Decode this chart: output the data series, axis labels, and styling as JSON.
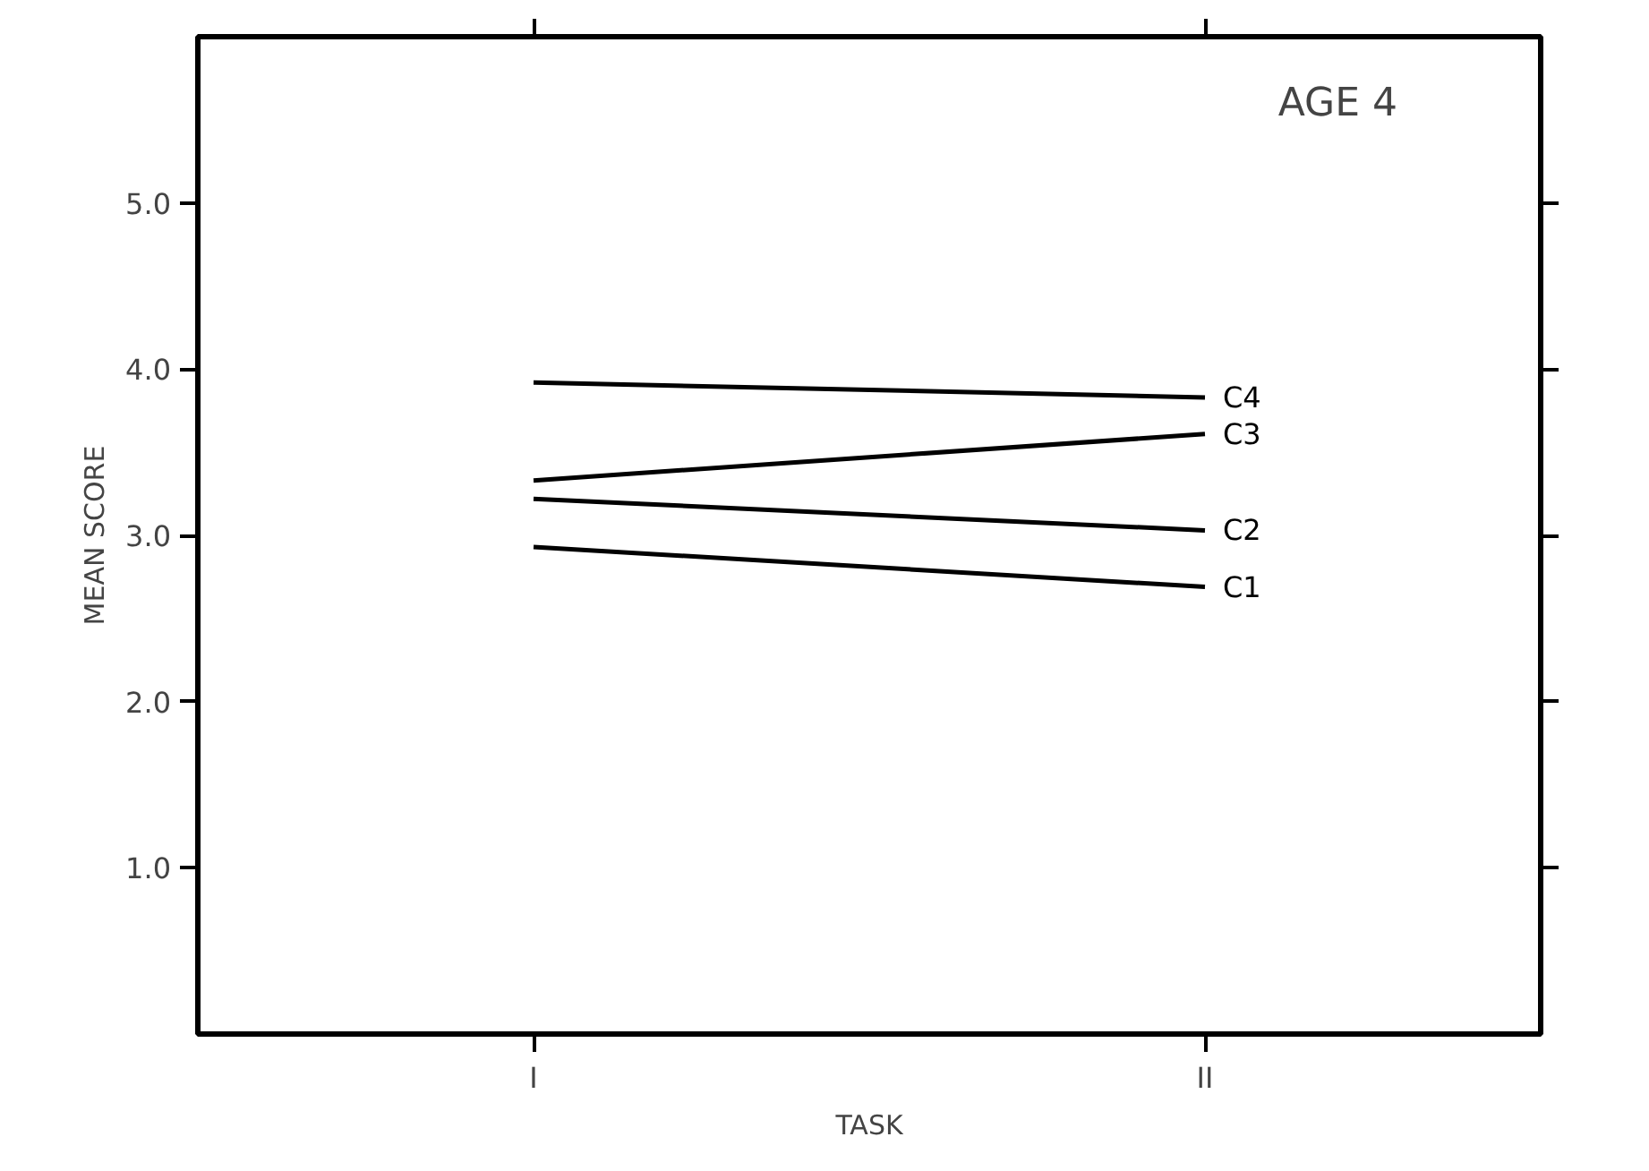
{
  "chart_data": {
    "type": "line",
    "xlabel": "TASK",
    "ylabel": "MEAN SCORE",
    "categories": [
      "I",
      "II"
    ],
    "series": [
      {
        "name": "C4",
        "color": "#000000",
        "values": [
          3.92,
          3.83
        ]
      },
      {
        "name": "C3",
        "color": "#000000",
        "values": [
          3.33,
          3.61
        ]
      },
      {
        "name": "C2",
        "color": "#000000",
        "values": [
          3.22,
          3.03
        ]
      },
      {
        "name": "C1",
        "color": "#000000",
        "values": [
          2.93,
          2.69
        ]
      }
    ],
    "ylim": [
      0,
      6
    ],
    "yticks": [
      {
        "value": 1,
        "label": "1.0"
      },
      {
        "value": 2,
        "label": "2.0"
      },
      {
        "value": 3,
        "label": "3.0"
      },
      {
        "value": 4,
        "label": "4.0"
      },
      {
        "value": 5,
        "label": "5.0"
      }
    ],
    "annotations": [
      "AGE 4"
    ],
    "grid": false,
    "legend": false,
    "marker": "none",
    "line_style": "solid"
  }
}
